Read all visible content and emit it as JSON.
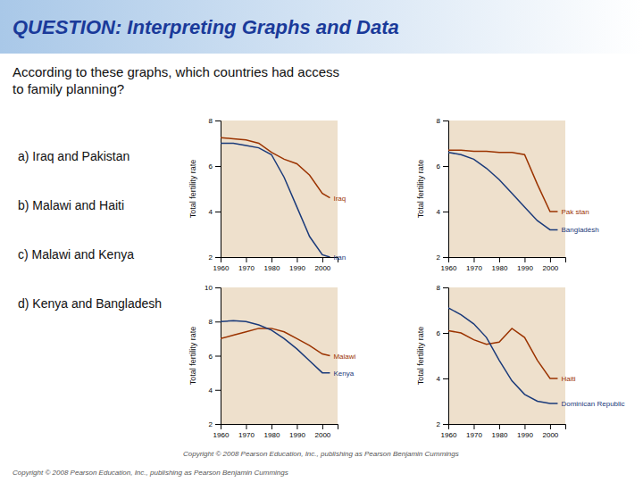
{
  "title": "QUESTION: Interpreting Graphs and Data",
  "annotations": [
    "According to these graphs, which countries had access\nto family planning?",
    "a)   Iraq and Pakistan",
    "b)   Malawi and Haiti",
    "c)   Malawi and Kenya",
    "d)   Kenya and Bangladesh",
    "Copyright © 2008 Pearson Education, Inc., publishing as Pearson Benjamin Cummings",
    "Copyright © 2008 Pearson Education, Inc., publishing as Pearson Benjamin Cummings"
  ],
  "chart_data": [
    {
      "type": "line",
      "x": [
        1960,
        1965,
        1970,
        1975,
        1980,
        1985,
        1990,
        1995,
        2000,
        2003
      ],
      "xlim": [
        1960,
        2006
      ],
      "xticks": [
        1960,
        1970,
        1980,
        1990,
        2000
      ],
      "ylim": [
        2,
        8
      ],
      "yticks": [
        2,
        4,
        6,
        8
      ],
      "ylabel": "Total fertility rate",
      "series": [
        {
          "name": "Iraq",
          "color": "#9B3300",
          "values": [
            7.25,
            7.2,
            7.15,
            7.0,
            6.6,
            6.3,
            6.1,
            5.6,
            4.8,
            4.6
          ]
        },
        {
          "name": "Iran",
          "color": "#1A3A7A",
          "values": [
            7.0,
            7.0,
            6.9,
            6.8,
            6.5,
            5.5,
            4.2,
            2.9,
            2.1,
            2.0
          ]
        }
      ]
    },
    {
      "type": "line",
      "x": [
        1960,
        1965,
        1970,
        1975,
        1980,
        1985,
        1990,
        1995,
        2000,
        2003
      ],
      "xlim": [
        1960,
        2006
      ],
      "xticks": [
        1960,
        1970,
        1980,
        1990,
        2000
      ],
      "ylim": [
        2,
        8
      ],
      "yticks": [
        2,
        4,
        6,
        8
      ],
      "ylabel": "Total fertility rate",
      "series": [
        {
          "name": "Pak stan",
          "color": "#9B3300",
          "values": [
            6.7,
            6.7,
            6.65,
            6.65,
            6.6,
            6.6,
            6.5,
            5.2,
            4.0,
            4.0
          ]
        },
        {
          "name": "Bangladésh",
          "color": "#1A3A7A",
          "values": [
            6.6,
            6.5,
            6.3,
            5.9,
            5.4,
            4.8,
            4.2,
            3.6,
            3.2,
            3.2
          ]
        }
      ]
    },
    {
      "type": "line",
      "x": [
        1960,
        1965,
        1970,
        1975,
        1980,
        1985,
        1990,
        1995,
        2000,
        2003
      ],
      "xlim": [
        1960,
        2006
      ],
      "xticks": [
        1960,
        1970,
        1980,
        1990,
        2000
      ],
      "ylim": [
        2,
        10
      ],
      "yticks": [
        2,
        4,
        6,
        8,
        10
      ],
      "ylabel": "Total fertility rate",
      "series": [
        {
          "name": "Malawi",
          "color": "#9B3300",
          "values": [
            7.0,
            7.2,
            7.4,
            7.6,
            7.6,
            7.4,
            7.0,
            6.6,
            6.1,
            6.0
          ]
        },
        {
          "name": "Kenya",
          "color": "#1A3A7A",
          "values": [
            8.0,
            8.05,
            8.0,
            7.8,
            7.5,
            7.0,
            6.4,
            5.7,
            5.0,
            5.0
          ]
        }
      ]
    },
    {
      "type": "line",
      "x": [
        1960,
        1965,
        1970,
        1975,
        1980,
        1985,
        1990,
        1995,
        2000,
        2003
      ],
      "xlim": [
        1960,
        2006
      ],
      "xticks": [
        1960,
        1970,
        1980,
        1990,
        2000
      ],
      "ylim": [
        2,
        8
      ],
      "yticks": [
        2,
        4,
        6,
        8
      ],
      "ylabel": "Total fertility rate",
      "series": [
        {
          "name": "Haiti",
          "color": "#9B3300",
          "values": [
            6.1,
            6.0,
            5.7,
            5.5,
            5.6,
            6.2,
            5.8,
            4.8,
            4.0,
            4.0
          ]
        },
        {
          "name": "Dominican Republic",
          "color": "#1A3A7A",
          "values": [
            7.1,
            6.8,
            6.4,
            5.8,
            4.8,
            3.9,
            3.3,
            3.0,
            2.9,
            2.9
          ]
        }
      ]
    }
  ]
}
